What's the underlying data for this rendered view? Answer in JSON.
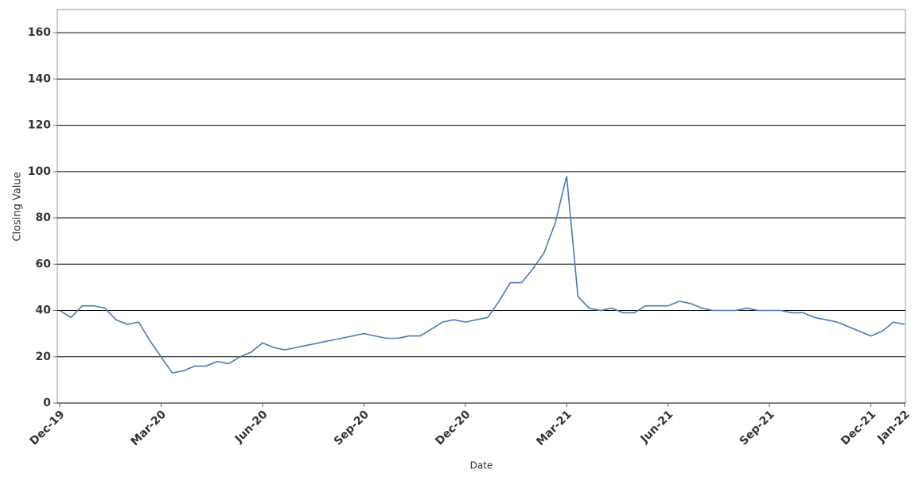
{
  "chart_data": {
    "type": "line",
    "x_label": "Date",
    "y_label": "Closing Value",
    "categories": [
      "Dec-19",
      null,
      null,
      null,
      null,
      null,
      null,
      null,
      null,
      "Mar-20",
      null,
      null,
      null,
      null,
      null,
      null,
      null,
      null,
      "Jun-20",
      null,
      null,
      null,
      null,
      null,
      null,
      null,
      null,
      "Sep-20",
      null,
      null,
      null,
      null,
      null,
      null,
      null,
      null,
      "Dec-20",
      null,
      null,
      null,
      null,
      null,
      null,
      null,
      null,
      "Mar-21",
      null,
      null,
      null,
      null,
      null,
      null,
      null,
      null,
      "Jun-21",
      null,
      null,
      null,
      null,
      null,
      null,
      null,
      null,
      "Sep-21",
      null,
      null,
      null,
      null,
      null,
      null,
      null,
      null,
      "Dec-21",
      null,
      null,
      "Jan-22"
    ],
    "series": [
      {
        "color": "#4a7ab5",
        "values": [
          40,
          37,
          42,
          42,
          41,
          36,
          34,
          35,
          27,
          20,
          13,
          14,
          16,
          16,
          18,
          17,
          20,
          22,
          26,
          24,
          23,
          24,
          25,
          26,
          27,
          28,
          29,
          30,
          29,
          28,
          28,
          29,
          29,
          32,
          35,
          36,
          35,
          36,
          37,
          44,
          52,
          52,
          58,
          65,
          78,
          98,
          46,
          41,
          40,
          41,
          39,
          39,
          42,
          42,
          42,
          44,
          43,
          41,
          40,
          40,
          40,
          41,
          40,
          40,
          40,
          39,
          39,
          37,
          36,
          35,
          33,
          31,
          29,
          31,
          35,
          34
        ]
      }
    ],
    "ylim": [
      0,
      170
    ],
    "yticks": [
      0,
      20,
      40,
      60,
      80,
      100,
      120,
      140,
      160
    ],
    "grid": true
  }
}
